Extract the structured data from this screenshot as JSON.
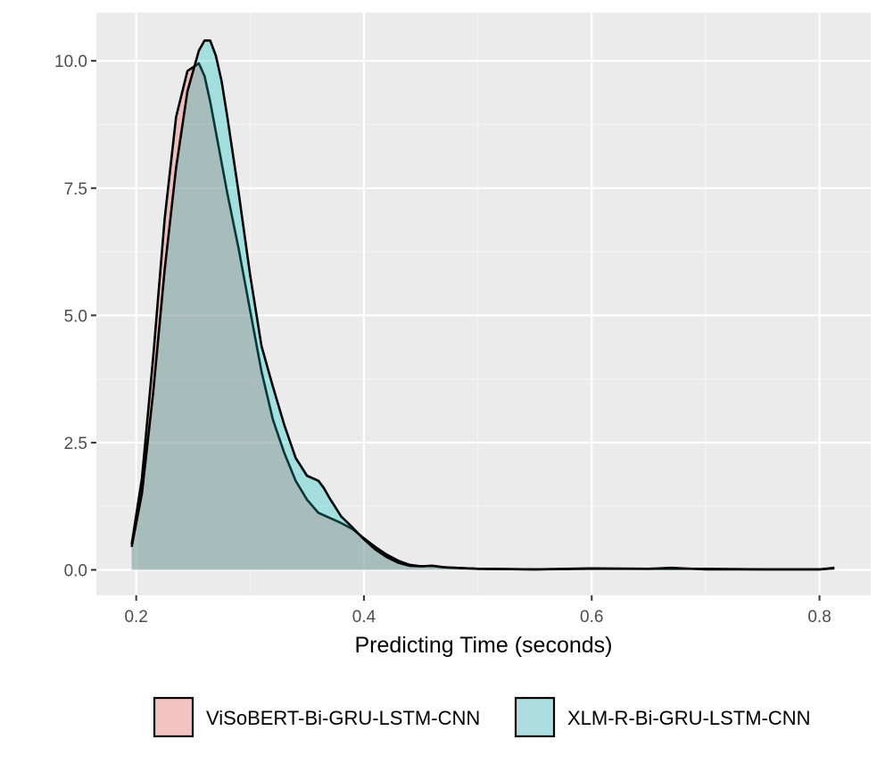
{
  "chart_data": {
    "type": "area",
    "title": "",
    "xlabel": "Predicting Time (seconds)",
    "ylabel": "",
    "xlim": [
      0.165,
      0.845
    ],
    "ylim": [
      -0.5,
      10.95
    ],
    "x_ticks": [
      0.2,
      0.4,
      0.6,
      0.8
    ],
    "x_tick_labels": [
      "0.2",
      "0.4",
      "0.6",
      "0.8"
    ],
    "y_ticks": [
      0.0,
      2.5,
      5.0,
      7.5,
      10.0
    ],
    "y_tick_labels": [
      "0.0",
      "2.5",
      "5.0",
      "7.5",
      "10.0"
    ],
    "grid": true,
    "legend_position": "bottom",
    "series": [
      {
        "name": "ViSoBERT-Bi-GRU-LSTM-CNN",
        "color": "#F8766D",
        "x": [
          0.196,
          0.205,
          0.215,
          0.225,
          0.235,
          0.245,
          0.255,
          0.26,
          0.265,
          0.27,
          0.275,
          0.28,
          0.29,
          0.3,
          0.31,
          0.32,
          0.33,
          0.34,
          0.35,
          0.36,
          0.37,
          0.38,
          0.39,
          0.4,
          0.41,
          0.42,
          0.43,
          0.44,
          0.45,
          0.46,
          0.47,
          0.48,
          0.5,
          0.55,
          0.6,
          0.65,
          0.7,
          0.75,
          0.8,
          0.813
        ],
        "y": [
          0.5,
          1.8,
          4.2,
          6.9,
          8.9,
          9.8,
          9.95,
          9.7,
          9.2,
          8.6,
          8.0,
          7.4,
          6.3,
          5.1,
          3.9,
          2.95,
          2.3,
          1.75,
          1.38,
          1.12,
          1.02,
          0.92,
          0.8,
          0.62,
          0.45,
          0.3,
          0.18,
          0.1,
          0.07,
          0.08,
          0.05,
          0.04,
          0.02,
          0.01,
          0.02,
          0.02,
          0.02,
          0.01,
          0.01,
          0.03
        ]
      },
      {
        "name": "XLM-R-Bi-GRU-LSTM-CNN",
        "color": "#00BFC4",
        "x": [
          0.196,
          0.205,
          0.215,
          0.225,
          0.235,
          0.245,
          0.255,
          0.26,
          0.265,
          0.27,
          0.275,
          0.28,
          0.29,
          0.3,
          0.31,
          0.32,
          0.33,
          0.34,
          0.35,
          0.36,
          0.365,
          0.37,
          0.38,
          0.39,
          0.4,
          0.41,
          0.42,
          0.43,
          0.44,
          0.45,
          0.46,
          0.47,
          0.48,
          0.5,
          0.55,
          0.6,
          0.65,
          0.67,
          0.7,
          0.75,
          0.8,
          0.813
        ],
        "y": [
          0.45,
          1.5,
          3.5,
          5.9,
          7.9,
          9.4,
          10.2,
          10.4,
          10.4,
          10.1,
          9.6,
          8.9,
          7.4,
          5.8,
          4.4,
          3.6,
          2.85,
          2.2,
          1.85,
          1.75,
          1.6,
          1.4,
          1.05,
          0.83,
          0.6,
          0.4,
          0.25,
          0.14,
          0.08,
          0.07,
          0.08,
          0.05,
          0.04,
          0.02,
          0.01,
          0.03,
          0.02,
          0.04,
          0.01,
          0.01,
          0.01,
          0.04
        ]
      }
    ]
  }
}
